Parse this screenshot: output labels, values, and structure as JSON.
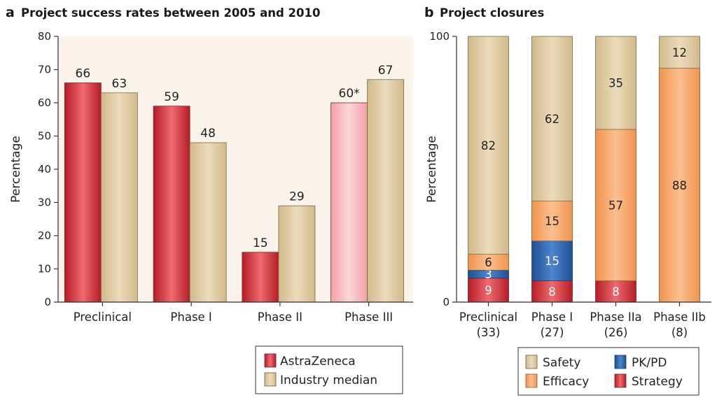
{
  "colors": {
    "panel_a_bg": "#faf4ea",
    "astrazeneca": "#d8353d",
    "astrazeneca_phase3": "#f3b0b5",
    "industry_median": "#dcc59a",
    "safety": "#dcc59a",
    "efficacy": "#f6a96a",
    "pkpd": "#2e63a8",
    "strategy": "#d8353d"
  },
  "chart_data": [
    {
      "panel_letter": "a",
      "type": "bar",
      "title": "Project success rates between 2005 and 2010",
      "xlabel": "",
      "ylabel": "Percentage",
      "ylim": [
        0,
        80
      ],
      "yticks": [
        0,
        10,
        20,
        30,
        40,
        50,
        60,
        70,
        80
      ],
      "categories": [
        "Preclinical",
        "Phase I",
        "Phase II",
        "Phase III"
      ],
      "series": [
        {
          "name": "AstraZeneca",
          "values": [
            66,
            59,
            15,
            60
          ],
          "labels": [
            "66",
            "59",
            "15",
            "60*"
          ]
        },
        {
          "name": "Industry median",
          "values": [
            63,
            48,
            29,
            67
          ],
          "labels": [
            "63",
            "48",
            "29",
            "67"
          ]
        }
      ],
      "legend": "bottom-right",
      "grid": false
    },
    {
      "panel_letter": "b",
      "type": "bar",
      "stacked": true,
      "title": "Project closures",
      "xlabel": "",
      "ylabel": "Percentage",
      "ylim": [
        0,
        100
      ],
      "yticks": [
        0,
        100
      ],
      "categories": [
        {
          "name": "Preclinical",
          "count": "(33)"
        },
        {
          "name": "Phase I",
          "count": "(27)"
        },
        {
          "name": "Phase IIa",
          "count": "(26)"
        },
        {
          "name": "Phase IIb",
          "count": "(8)"
        }
      ],
      "series": [
        {
          "name": "Strategy",
          "values": [
            9,
            8,
            8,
            0
          ]
        },
        {
          "name": "PK/PD",
          "values": [
            3,
            15,
            0,
            0
          ]
        },
        {
          "name": "Efficacy",
          "values": [
            6,
            15,
            57,
            88
          ]
        },
        {
          "name": "Safety",
          "values": [
            82,
            62,
            35,
            12
          ]
        }
      ],
      "legend_order": [
        "Safety",
        "PK/PD",
        "Efficacy",
        "Strategy"
      ],
      "legend": "bottom-right",
      "grid": false
    }
  ]
}
